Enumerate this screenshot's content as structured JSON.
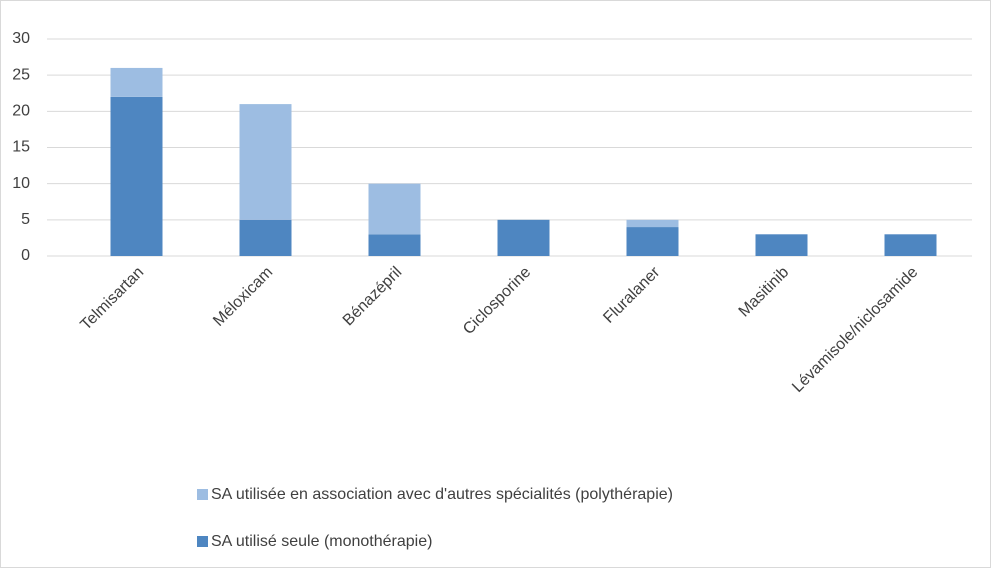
{
  "chart_data": {
    "type": "stacked_bar",
    "categories": [
      "Telmisartan",
      "Méloxicam",
      "Bénazépril",
      "Ciclosporine",
      "Fluralaner",
      "Masitinib",
      "Lévamisole/niclosamide"
    ],
    "series": [
      {
        "name": "SA utilisé seule (monothérapie)",
        "color": "#4e86c1",
        "values": [
          22,
          5,
          3,
          5,
          4,
          3,
          3
        ]
      },
      {
        "name": "SA utilisée en association avec d'autres spécialités (polythérapie)",
        "color": "#9dbde2",
        "values": [
          4,
          16,
          7,
          0,
          1,
          0,
          0
        ]
      }
    ],
    "ylim": [
      0,
      30
    ],
    "yticks": [
      0,
      5,
      10,
      15,
      20,
      25,
      30
    ],
    "grid": true,
    "legend": "bottom"
  }
}
